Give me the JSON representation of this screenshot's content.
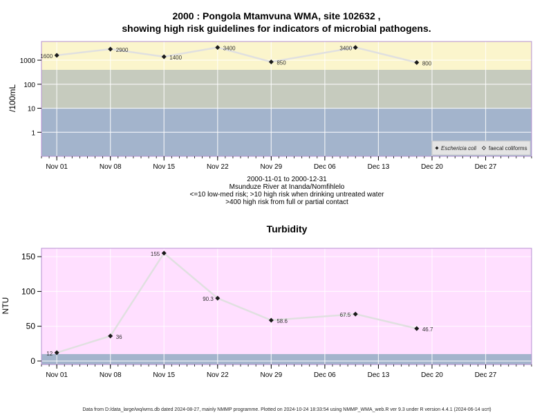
{
  "header": {
    "title_line1": "2000 : Pongola Mtamvuna WMA, site 102632 ,",
    "title_line2": "showing high risk guidelines for indicators of microbial pathogens."
  },
  "subtitle": {
    "date_range": "2000-11-01 to 2000-12-31",
    "site": "Msunduze River at Inanda/Nomfihlelo",
    "note1": "<=10 low-med risk; >10 high risk when drinking untreated water",
    "note2": ">400 high risk from full or partial contact"
  },
  "footer": {
    "text": "Data from D:/data_large/wq/wms.db dated 2024-08-27, mainly NMMP programme. Plotted on 2024-10-24 18:33:54 using NMMP_WMA_web.R ver 9.3 under R version 4.4.1 (2024-06-14 ucrt)"
  },
  "colors": {
    "band_low": "#a3b4cc",
    "band_mid": "#c6cbbe",
    "band_high": "#fbf5cc",
    "turbidity_bg": "#ffdfff",
    "turbidity_low": "#a3b4cc",
    "line": "#e0e0e0",
    "point": "#1a1a1a"
  },
  "chart_data": [
    {
      "type": "line",
      "ylabel": "/100mL",
      "y_scale": "log",
      "ylim": [
        0.1,
        6000
      ],
      "y_ticks": [
        1,
        10,
        100,
        1000
      ],
      "y_tick_labels": [
        "1",
        "10",
        "100",
        "1000"
      ],
      "x_ticks": [
        "2000-11-01",
        "2000-11-08",
        "2000-11-15",
        "2000-11-22",
        "2000-11-29",
        "2000-12-06",
        "2000-12-13",
        "2000-12-20",
        "2000-12-27"
      ],
      "x_tick_labels": [
        "Nov 01",
        "Nov 08",
        "Nov 15",
        "Nov 22",
        "Nov 29",
        "Dec 06",
        "Dec 13",
        "Dec 20",
        "Dec 27"
      ],
      "x_range": [
        "2000-10-30",
        "2001-01-02"
      ],
      "bands": [
        {
          "from": 0.1,
          "to": 10
        },
        {
          "from": 10,
          "to": 400
        },
        {
          "from": 400,
          "to": 6000
        }
      ],
      "grid": true,
      "legend_position": "bottom-right",
      "legend": [
        "Eschericia coli",
        "faecal coliforms"
      ],
      "series": [
        {
          "name": "Eschericia coli",
          "x": [
            "2000-11-01",
            "2000-11-08",
            "2000-11-15",
            "2000-11-22",
            "2000-11-29",
            "2000-12-10",
            "2000-12-18"
          ],
          "values": [
            1600,
            2900,
            1400,
            3400,
            850,
            3400,
            800
          ],
          "labels": [
            "1600",
            "2900",
            "1400",
            "3400",
            "850",
            "3400",
            "800"
          ]
        }
      ]
    },
    {
      "type": "line",
      "title": "Turbidity",
      "ylabel": "NTU",
      "ylim": [
        -5,
        162
      ],
      "y_ticks": [
        0,
        50,
        100,
        150
      ],
      "y_tick_labels": [
        "0",
        "50",
        "100",
        "150"
      ],
      "x_ticks": [
        "2000-11-01",
        "2000-11-08",
        "2000-11-15",
        "2000-11-22",
        "2000-11-29",
        "2000-12-06",
        "2000-12-13",
        "2000-12-20",
        "2000-12-27"
      ],
      "x_tick_labels": [
        "Nov 01",
        "Nov 08",
        "Nov 15",
        "Nov 22",
        "Nov 29",
        "Dec 06",
        "Dec 13",
        "Dec 20",
        "Dec 27"
      ],
      "x_range": [
        "2000-10-30",
        "2001-01-02"
      ],
      "bands": [
        {
          "from": -5,
          "to": 10
        }
      ],
      "grid": true,
      "series": [
        {
          "name": "",
          "x": [
            "2000-11-01",
            "2000-11-08",
            "2000-11-15",
            "2000-11-22",
            "2000-11-29",
            "2000-12-10",
            "2000-12-18"
          ],
          "values": [
            12,
            36,
            155,
            90.3,
            58.6,
            67.5,
            46.7
          ],
          "labels": [
            "12",
            "36",
            "155",
            "90.3",
            "58.6",
            "67.5",
            "46.7"
          ]
        }
      ]
    }
  ]
}
